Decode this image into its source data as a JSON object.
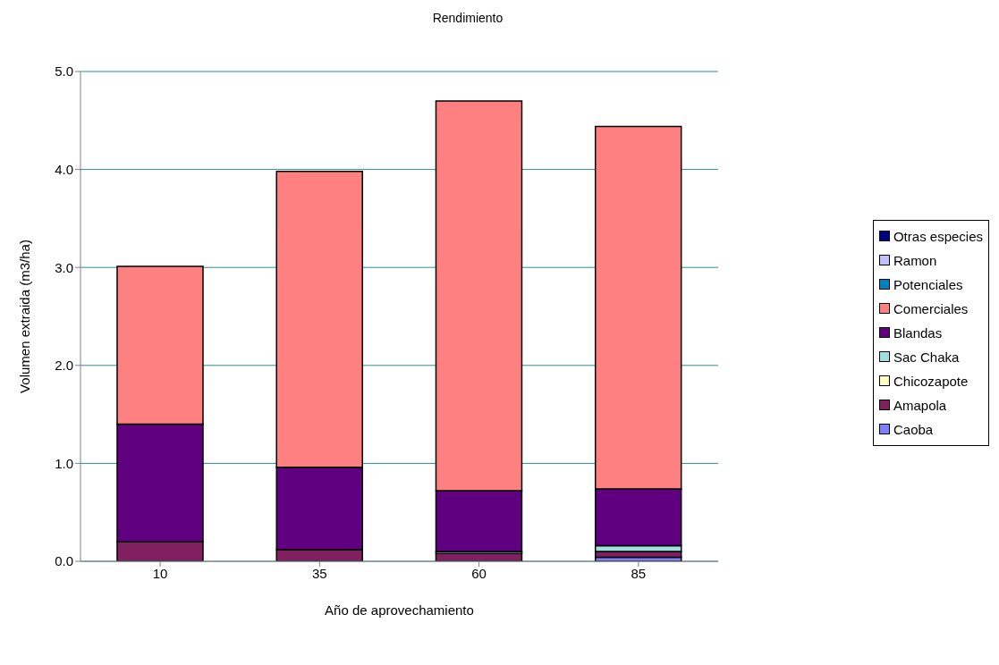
{
  "chart_data": {
    "type": "bar",
    "title": "Rendimiento",
    "xlabel": "Año de aprovechamiento",
    "ylabel": "Volumen extraida (m3/ha)",
    "categories": [
      "10",
      "35",
      "60",
      "85"
    ],
    "stacked": true,
    "series": [
      {
        "name": "Caoba",
        "color": "#8080ff",
        "values": [
          0,
          0,
          0,
          0.04
        ]
      },
      {
        "name": "Amapola",
        "color": "#802060",
        "values": [
          0.2,
          0.12,
          0.08,
          0.06
        ]
      },
      {
        "name": "Chicozapote",
        "color": "#ffffc0",
        "values": [
          0,
          0,
          0,
          0
        ]
      },
      {
        "name": "Sac Chaka",
        "color": "#a0e0e0",
        "values": [
          0,
          null,
          0.02,
          0.06
        ]
      },
      {
        "name": "Blandas",
        "color": "#600080",
        "values": [
          1.2,
          0.84,
          0.62,
          0.58
        ]
      },
      {
        "name": "Comerciales",
        "color": "#ff8080",
        "values": [
          1.61,
          3.02,
          3.98,
          3.7
        ]
      },
      {
        "name": "Potenciales",
        "color": "#0080c0",
        "values": [
          0,
          0,
          0,
          0
        ]
      },
      {
        "name": "Ramon",
        "color": "#c0c0ff",
        "values": [
          0,
          0,
          0,
          0
        ]
      },
      {
        "name": "Otras especies",
        "color": "#000080",
        "values": [
          0,
          0,
          0,
          0
        ]
      }
    ],
    "ylim": [
      0,
      5
    ],
    "yticks": [
      {
        "value": 0,
        "label": "0.0"
      },
      {
        "value": 1,
        "label": "1.0"
      },
      {
        "value": 2,
        "label": "2.0"
      },
      {
        "value": 3,
        "label": "3.0"
      },
      {
        "value": 4,
        "label": "4.0"
      },
      {
        "value": 5,
        "label": "5.0"
      }
    ],
    "grid": "y",
    "legend": "right"
  }
}
